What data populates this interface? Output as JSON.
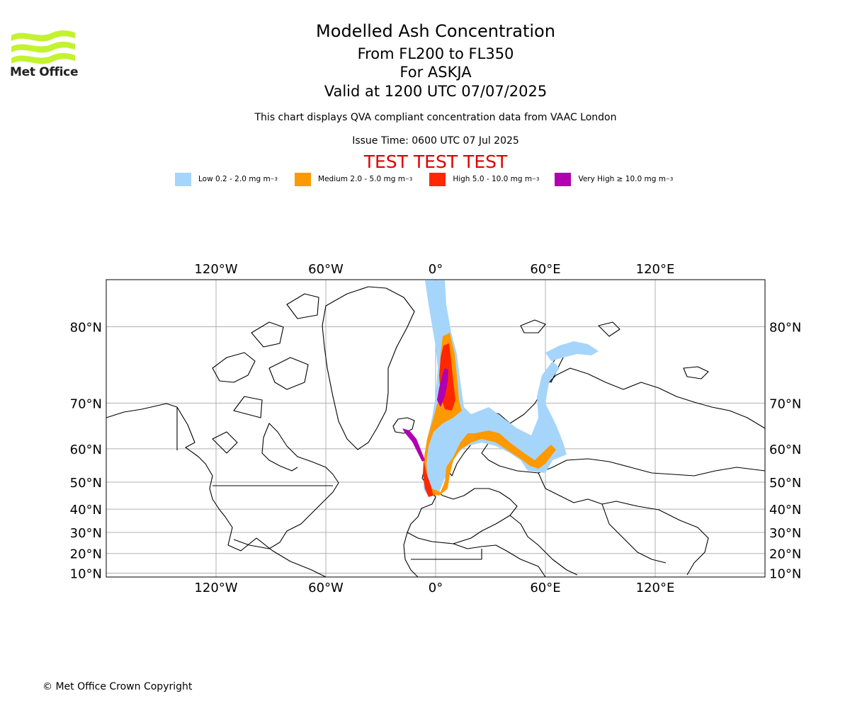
{
  "header": {
    "logo_text": "Met Office",
    "title": "Modelled Ash Concentration",
    "subtitle_levels": "From FL200 to FL350",
    "subtitle_volcano": "For ASKJA",
    "subtitle_valid": "Valid at 1200 UTC 07/07/2025",
    "note": "This chart displays QVA compliant concentration data from VAAC London",
    "issue_time": "Issue Time: 0600 UTC 07 Jul 2025",
    "test_banner": "TEST TEST TEST"
  },
  "legend": [
    {
      "label": "Low 0.2 - 2.0 mg m",
      "color": "#a6d5fb"
    },
    {
      "label": "Medium 2.0 - 5.0 mg m",
      "color": "#ff9900"
    },
    {
      "label": "High 5.0 - 10.0 mg m",
      "color": "#ff2800"
    },
    {
      "label": "Very High ≥ 10.0 mg m",
      "color": "#b000b0"
    }
  ],
  "legend_unit_exponent": "−3",
  "map": {
    "projection": "mercator",
    "lon_range": [
      -180,
      180
    ],
    "lat_range": [
      8,
      83.5
    ],
    "lon_ticks": [
      {
        "value": -120,
        "label": "120°W"
      },
      {
        "value": -60,
        "label": "60°W"
      },
      {
        "value": 0,
        "label": "0°"
      },
      {
        "value": 60,
        "label": "60°E"
      },
      {
        "value": 120,
        "label": "120°E"
      }
    ],
    "lat_ticks": [
      {
        "value": 80,
        "label": "80°N"
      },
      {
        "value": 70,
        "label": "70°N"
      },
      {
        "value": 60,
        "label": "60°N"
      },
      {
        "value": 50,
        "label": "50°N"
      },
      {
        "value": 40,
        "label": "40°N"
      },
      {
        "value": 30,
        "label": "30°N"
      },
      {
        "value": 20,
        "label": "20°N"
      },
      {
        "value": 10,
        "label": "10°N"
      }
    ],
    "gridlines": true
  },
  "footer": {
    "copyright": "© Met Office Crown Copyright"
  }
}
